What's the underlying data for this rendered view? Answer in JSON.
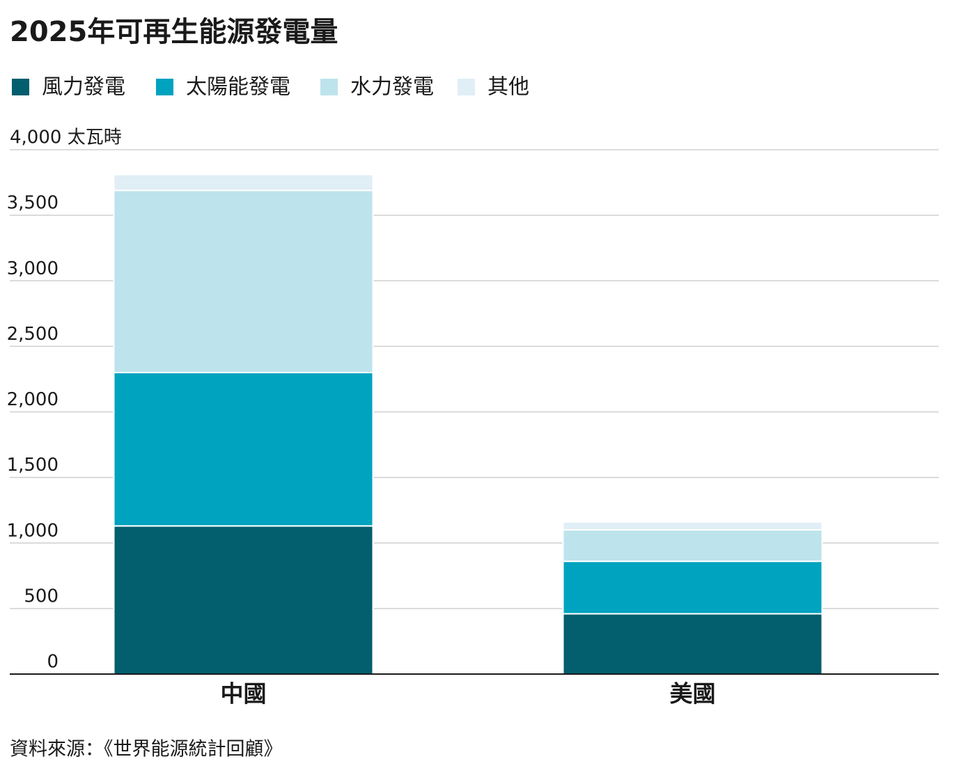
{
  "chart_data": {
    "type": "stacked_bar",
    "title": "2025年可再生能源發電量",
    "source": "資料來源：《世界能源統計回顧》",
    "categories": [
      "中國",
      "美國"
    ],
    "series": [
      {
        "name": "風力發電",
        "color": "#035e6e",
        "values": [
          1130,
          460
        ]
      },
      {
        "name": "太陽能發電",
        "color": "#00a3bf",
        "values": [
          1170,
          400
        ]
      },
      {
        "name": "水力發電",
        "color": "#bde3ec",
        "values": [
          1390,
          240
        ]
      },
      {
        "name": "其他",
        "color": "#e0eef6",
        "values": [
          120,
          60
        ]
      }
    ],
    "ylim": [
      0,
      4000
    ],
    "yticks": [
      0,
      500,
      {
        "value": 1000,
        "label": "1,000"
      },
      {
        "value": 1500,
        "label": "1,500"
      },
      {
        "value": 2000,
        "label": "2,000"
      },
      {
        "value": 2500,
        "label": "2,500"
      },
      {
        "value": 3000,
        "label": "3,000"
      },
      {
        "value": 3500,
        "label": "3,500"
      },
      {
        "value": 4000,
        "label": "4,000 太瓦時"
      }
    ],
    "grid": true
  }
}
